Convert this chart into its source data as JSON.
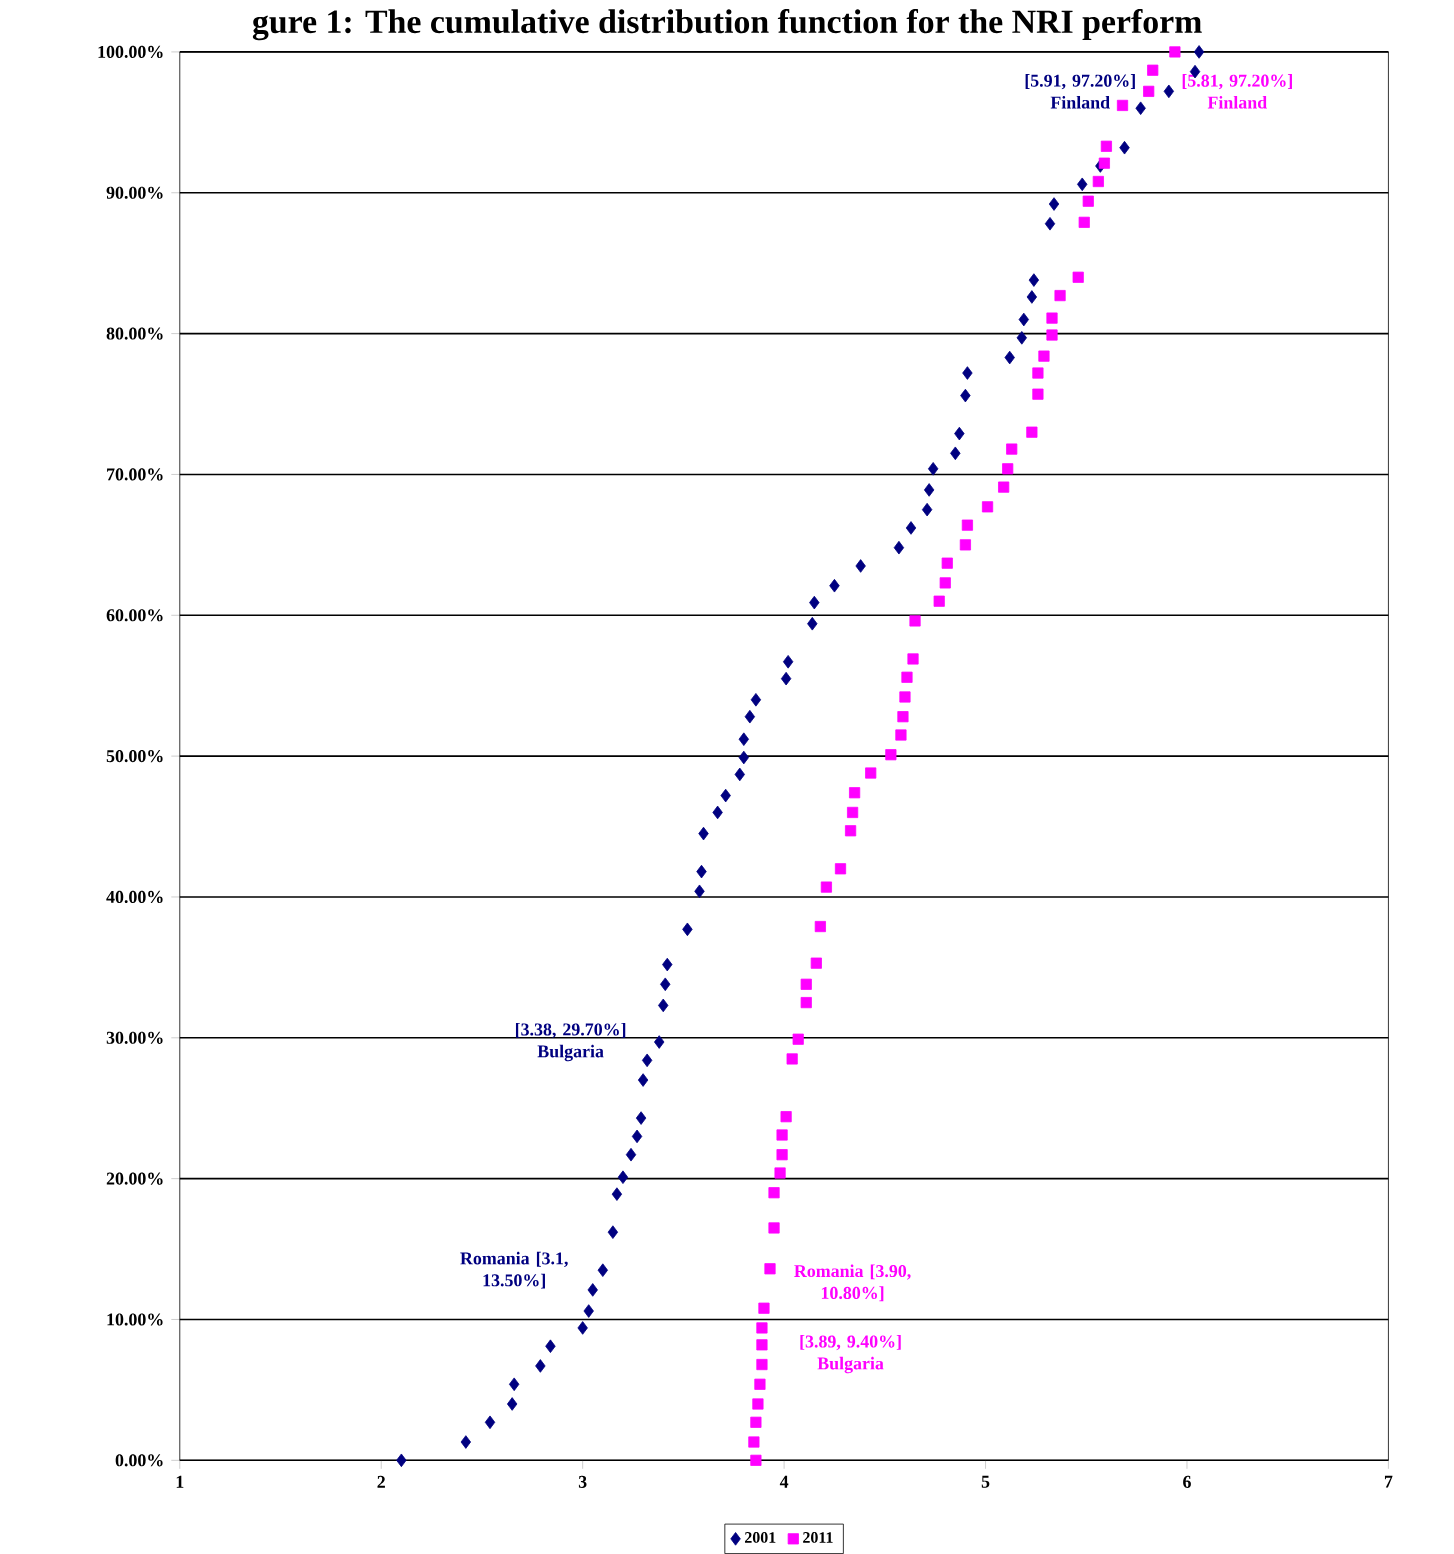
{
  "chart_data": {
    "type": "scatter",
    "title": "gure 1: The cumulative distribution function for the NRI perform",
    "xlim": [
      1,
      7
    ],
    "xticks": [
      1,
      2,
      3,
      4,
      5,
      6,
      7
    ],
    "ylim": [
      0,
      100
    ],
    "yticks": [
      {
        "value": 0,
        "label": "0.00%"
      },
      {
        "value": 10,
        "label": "10.00%"
      },
      {
        "value": 20,
        "label": "20.00%"
      },
      {
        "value": 30,
        "label": "30.00%"
      },
      {
        "value": 40,
        "label": "40.00%"
      },
      {
        "value": 50,
        "label": "50.00%"
      },
      {
        "value": 60,
        "label": "60.00%"
      },
      {
        "value": 70,
        "label": "70.00%"
      },
      {
        "value": 80,
        "label": "80.00%"
      },
      {
        "value": 90,
        "label": "90.00%"
      },
      {
        "value": 100,
        "label": "100.00%"
      }
    ],
    "grid": "y",
    "legend": "bottom",
    "series": [
      {
        "name": "2001",
        "color": "#000080",
        "marker": "diamond",
        "x": [
          2.1,
          2.42,
          2.54,
          2.65,
          2.66,
          2.79,
          2.84,
          3.0,
          3.03,
          3.05,
          3.1,
          3.15,
          3.17,
          3.2,
          3.24,
          3.27,
          3.29,
          3.3,
          3.32,
          3.38,
          3.4,
          3.41,
          3.42,
          3.52,
          3.58,
          3.59,
          3.6,
          3.67,
          3.71,
          3.78,
          3.8,
          3.8,
          3.83,
          3.86,
          4.01,
          4.02,
          4.14,
          4.15,
          4.25,
          4.38,
          4.57,
          4.63,
          4.71,
          4.72,
          4.74,
          4.85,
          4.87,
          4.9,
          4.91,
          5.12,
          5.18,
          5.19,
          5.23,
          5.24,
          5.32,
          5.34,
          5.48,
          5.57,
          5.69,
          5.77,
          5.91,
          6.04,
          6.06
        ],
        "values": [
          0.0,
          1.3,
          2.7,
          4.0,
          5.4,
          6.7,
          8.1,
          9.4,
          10.6,
          12.1,
          13.5,
          16.2,
          18.9,
          20.1,
          21.7,
          23.0,
          24.3,
          27.0,
          28.4,
          29.7,
          32.3,
          33.8,
          35.2,
          37.7,
          40.4,
          41.8,
          44.5,
          46.0,
          47.2,
          48.7,
          49.9,
          51.2,
          52.8,
          54.0,
          55.5,
          56.7,
          59.4,
          60.9,
          62.1,
          63.5,
          64.8,
          66.2,
          67.5,
          68.9,
          70.4,
          71.5,
          72.9,
          75.6,
          77.2,
          78.3,
          79.7,
          81.0,
          82.6,
          83.8,
          87.8,
          89.2,
          90.6,
          91.9,
          93.2,
          96.0,
          97.2,
          98.6,
          100.0
        ]
      },
      {
        "name": "2011",
        "color": "#ff00ff",
        "marker": "square",
        "x": [
          3.86,
          3.85,
          3.86,
          3.87,
          3.88,
          3.89,
          3.89,
          3.89,
          3.9,
          3.93,
          3.95,
          3.95,
          3.98,
          3.99,
          3.99,
          4.01,
          4.04,
          4.07,
          4.11,
          4.11,
          4.16,
          4.18,
          4.21,
          4.28,
          4.33,
          4.34,
          4.35,
          4.43,
          4.53,
          4.58,
          4.59,
          4.6,
          4.61,
          4.64,
          4.65,
          4.77,
          4.8,
          4.81,
          4.9,
          4.91,
          5.01,
          5.09,
          5.11,
          5.13,
          5.23,
          5.26,
          5.26,
          5.29,
          5.33,
          5.33,
          5.37,
          5.46,
          5.49,
          5.51,
          5.56,
          5.59,
          5.6,
          5.68,
          5.81,
          5.83,
          5.94
        ],
        "values": [
          0.0,
          1.3,
          2.7,
          4.0,
          5.4,
          6.8,
          8.2,
          9.4,
          10.8,
          13.6,
          16.5,
          19.0,
          20.4,
          21.7,
          23.1,
          24.4,
          28.5,
          29.9,
          32.5,
          33.8,
          35.3,
          37.9,
          40.7,
          42.0,
          44.7,
          46.0,
          47.4,
          48.8,
          50.1,
          51.5,
          52.8,
          54.2,
          55.6,
          56.9,
          59.6,
          61.0,
          62.3,
          63.7,
          65.0,
          66.4,
          67.7,
          69.1,
          70.4,
          71.8,
          73.0,
          75.7,
          77.2,
          78.4,
          79.9,
          81.1,
          82.7,
          84.0,
          87.9,
          89.4,
          90.8,
          92.1,
          93.3,
          96.2,
          97.2,
          98.7,
          100.0
        ]
      }
    ],
    "annotations": [
      {
        "text": "[5.91, 97.20%] Finland",
        "x": 5.91,
        "y": 97.2
      },
      {
        "text": "[5.81, 97.20%] Finland",
        "x": 5.81,
        "y": 97.2
      },
      {
        "text": "[3.38, 29.70%] Bulgaria",
        "x": 3.38,
        "y": 29.7
      },
      {
        "text": "Romania [3.1, 13.50%]",
        "x": 3.1,
        "y": 13.5
      },
      {
        "text": "Romania [3.90, 10.80%]",
        "x": 3.9,
        "y": 10.8
      },
      {
        "text": "[3.89, 9.40%] Bulgaria",
        "x": 3.89,
        "y": 9.4
      }
    ]
  }
}
